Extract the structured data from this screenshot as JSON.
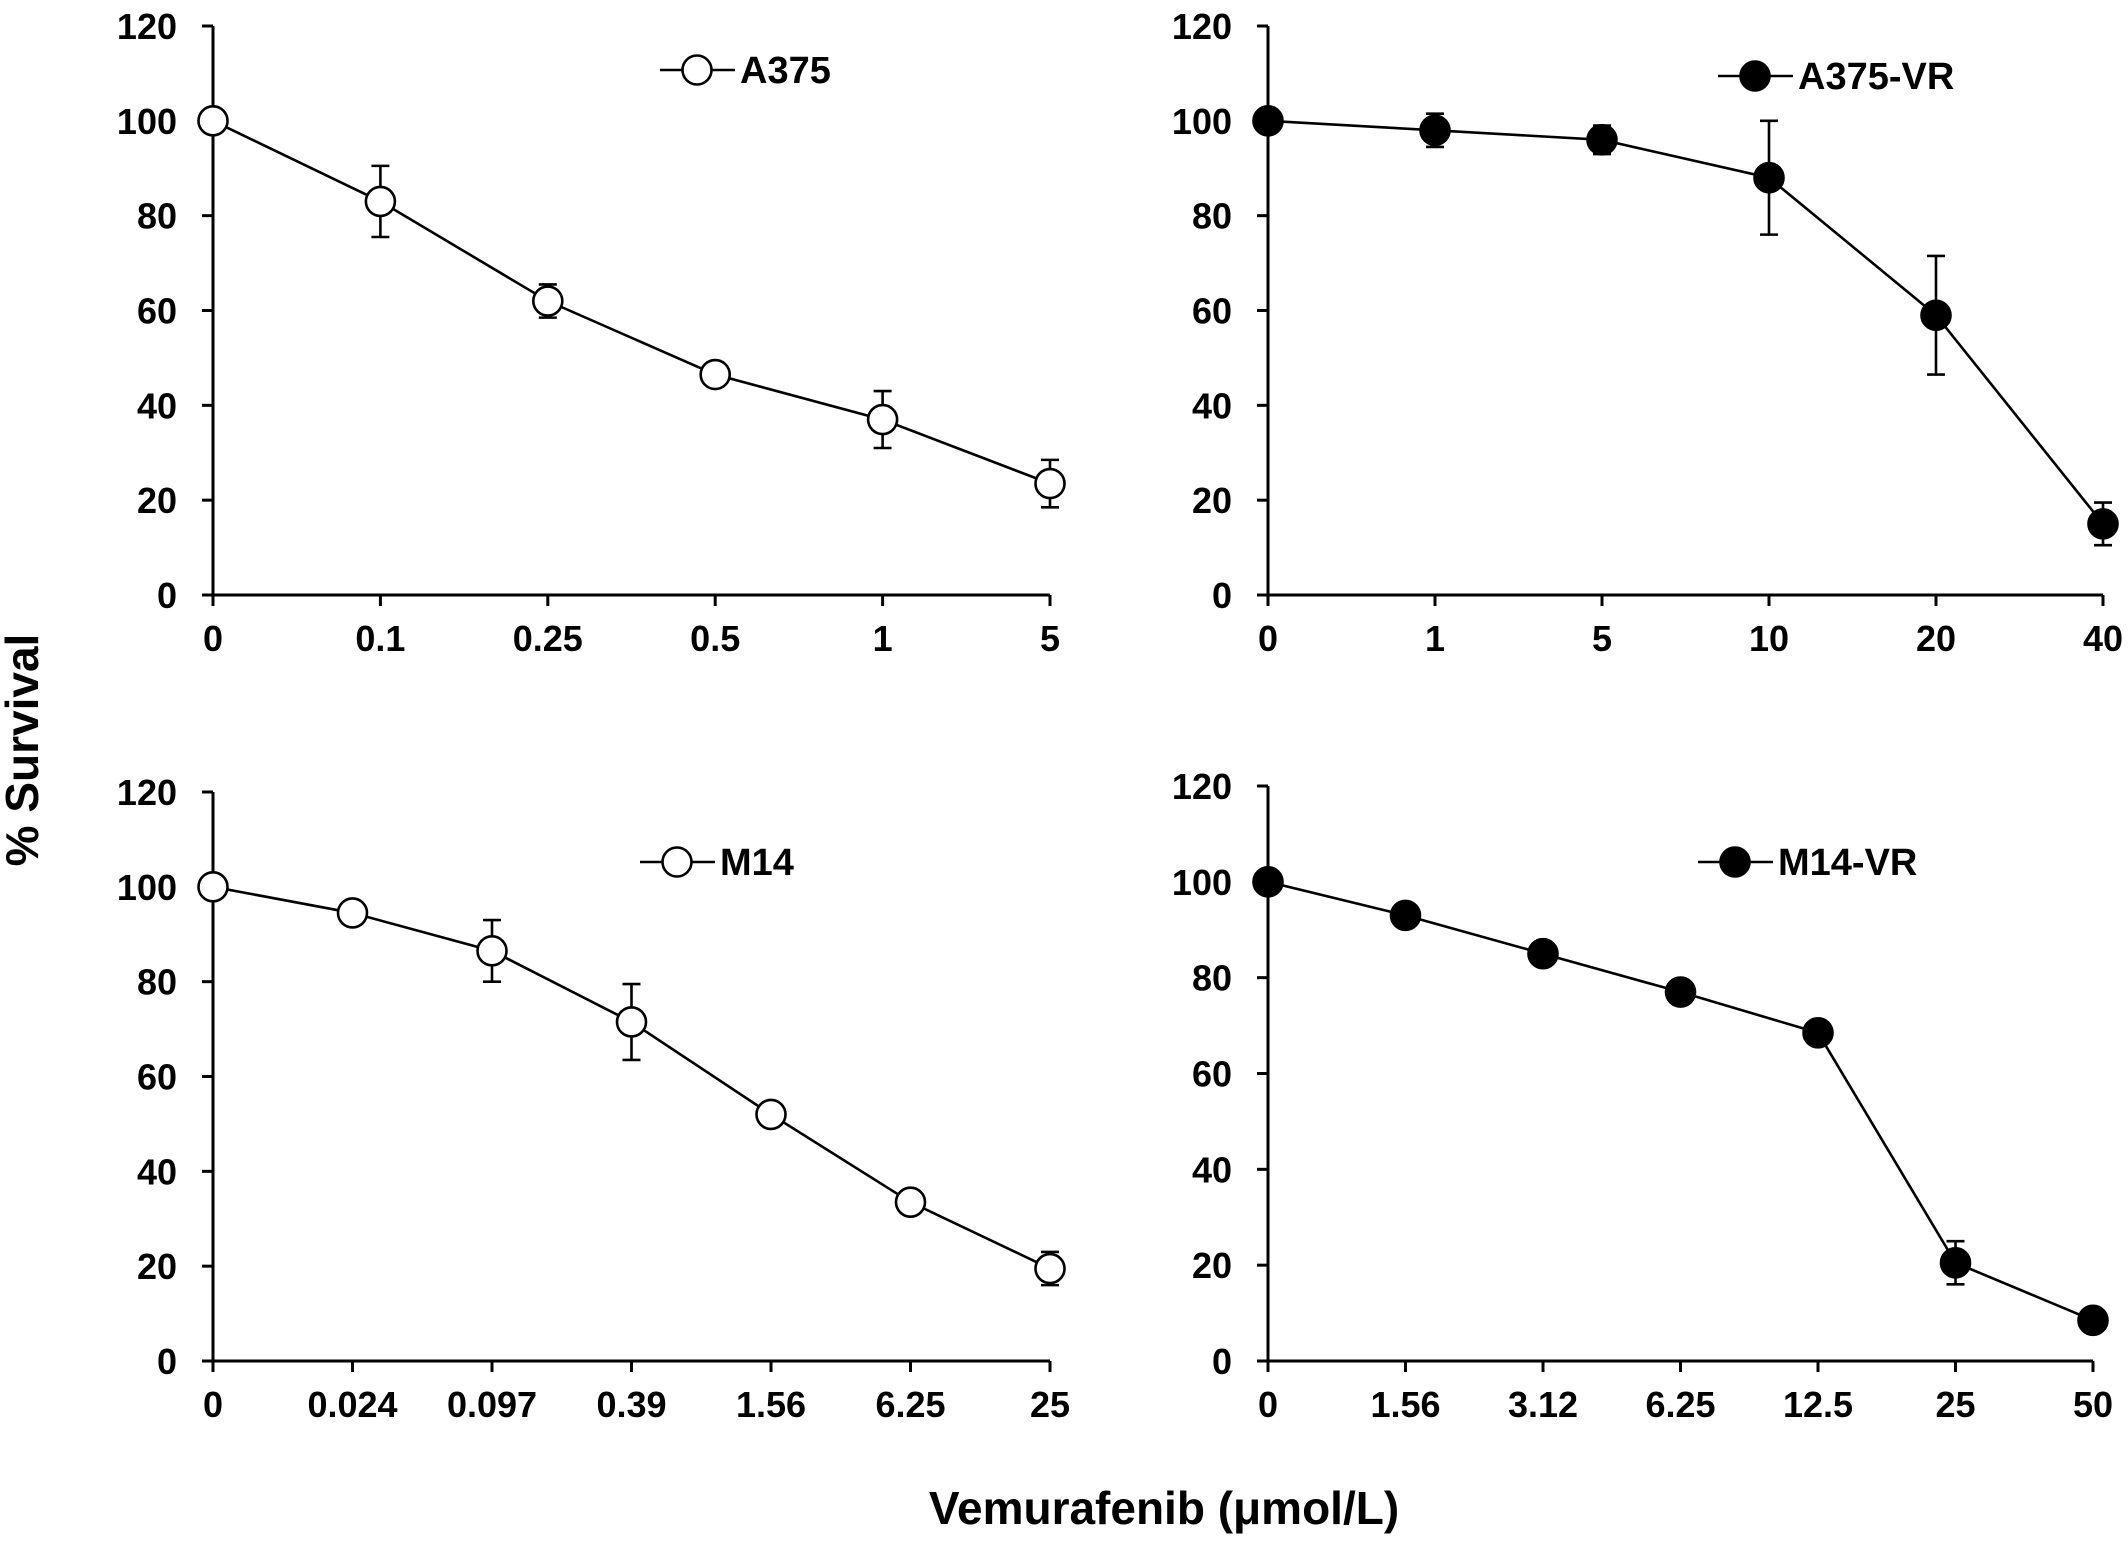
{
  "figure": {
    "ylabel": "% Survival",
    "xlabel": "Vemurafenib (μmol/L)"
  },
  "chart_data": [
    {
      "type": "line",
      "series": [
        {
          "name": "A375",
          "marker": "open-circle",
          "values": [
            100,
            83,
            62,
            46.5,
            37,
            23.5
          ],
          "errors": [
            0,
            7.5,
            3.5,
            2.5,
            6,
            5
          ]
        }
      ],
      "categories": [
        "0",
        "0.1",
        "0.25",
        "0.5",
        "1",
        "5"
      ],
      "ylim": [
        0,
        120
      ],
      "yticks": [
        "0",
        "20",
        "40",
        "60",
        "80",
        "100",
        "120"
      ],
      "legend_position": "top-right",
      "grid": false
    },
    {
      "type": "line",
      "series": [
        {
          "name": "A375-VR",
          "marker": "filled-circle",
          "values": [
            100,
            98,
            96,
            88,
            59,
            15
          ],
          "errors": [
            0,
            3.5,
            3,
            12,
            12.5,
            4.5
          ]
        }
      ],
      "categories": [
        "0",
        "1",
        "5",
        "10",
        "20",
        "40"
      ],
      "ylim": [
        0,
        120
      ],
      "yticks": [
        "0",
        "20",
        "40",
        "60",
        "80",
        "100",
        "120"
      ],
      "legend_position": "top-right",
      "grid": false
    },
    {
      "type": "line",
      "series": [
        {
          "name": "M14",
          "marker": "open-circle",
          "values": [
            100,
            94.5,
            86.5,
            71.5,
            52,
            33.5,
            19.5
          ],
          "errors": [
            0,
            0,
            6.5,
            8,
            0,
            0,
            3.5
          ]
        }
      ],
      "categories": [
        "0",
        "0.024",
        "0.097",
        "0.39",
        "1.56",
        "6.25",
        "25"
      ],
      "ylim": [
        0,
        120
      ],
      "yticks": [
        "0",
        "20",
        "40",
        "60",
        "80",
        "100",
        "120"
      ],
      "legend_position": "top-right",
      "grid": false
    },
    {
      "type": "line",
      "series": [
        {
          "name": "M14-VR",
          "marker": "filled-circle",
          "values": [
            100,
            93,
            85,
            77,
            68.5,
            20.5,
            8.5
          ],
          "errors": [
            0,
            0,
            0,
            0,
            0,
            4.5,
            0
          ]
        }
      ],
      "categories": [
        "0",
        "1.56",
        "3.12",
        "6.25",
        "12.5",
        "25",
        "50"
      ],
      "ylim": [
        0,
        120
      ],
      "yticks": [
        "0",
        "20",
        "40",
        "60",
        "80",
        "100",
        "120"
      ],
      "legend_position": "top-right",
      "grid": false
    }
  ]
}
